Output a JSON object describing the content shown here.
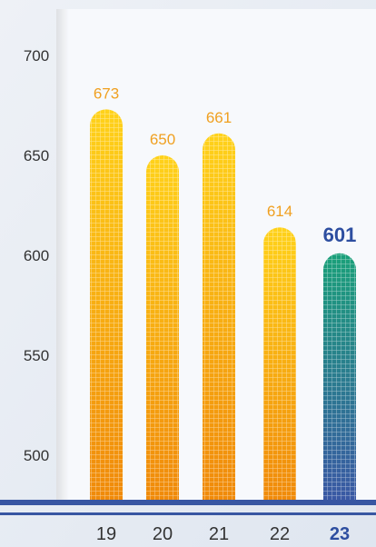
{
  "chart_data": {
    "type": "bar",
    "categories": [
      "19",
      "20",
      "21",
      "22",
      "23"
    ],
    "values": [
      673,
      650,
      661,
      614,
      601
    ],
    "value_labels": [
      "673",
      "650",
      "661",
      "614",
      "601"
    ],
    "y_ticks": [
      500,
      550,
      600,
      650,
      700
    ],
    "y_tick_labels": [
      "500",
      "550",
      "600",
      "650",
      "700"
    ],
    "ylim": [
      475,
      711
    ],
    "grid": false,
    "highlight_index": 4,
    "colors": {
      "bar_top": "#ffd21a",
      "bar_bottom": "#f08a0a",
      "highlight_top": "#1aa079",
      "highlight_bottom": "#3a58a4",
      "value_label": "#f0a020",
      "highlight_label": "#2d4ea0",
      "tick_label": "#333333",
      "baseline": "#3856a2"
    }
  }
}
